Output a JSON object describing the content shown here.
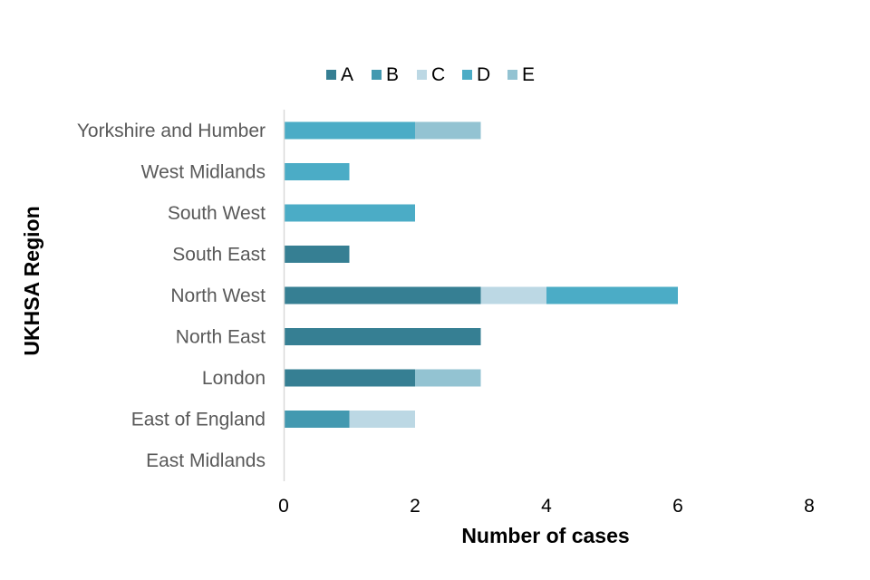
{
  "chart_data": {
    "type": "bar",
    "orientation": "horizontal",
    "stacked": true,
    "categories": [
      "East Midlands",
      "East of England",
      "London",
      "North East",
      "North West",
      "South East",
      "South West",
      "West Midlands",
      "Yorkshire and Humber"
    ],
    "series": [
      {
        "name": "A",
        "color": "#367f93",
        "values": [
          0,
          0,
          2,
          3,
          3,
          1,
          0,
          0,
          0
        ]
      },
      {
        "name": "B",
        "color": "#4399b0",
        "values": [
          0,
          1,
          0,
          0,
          0,
          0,
          0,
          0,
          0
        ]
      },
      {
        "name": "C",
        "color": "#bcd8e4",
        "values": [
          0,
          1,
          0,
          0,
          1,
          0,
          0,
          0,
          0
        ]
      },
      {
        "name": "D",
        "color": "#4bacc6",
        "values": [
          0,
          0,
          0,
          0,
          2,
          0,
          2,
          1,
          2
        ]
      },
      {
        "name": "E",
        "color": "#93c3d2",
        "values": [
          0,
          0,
          1,
          0,
          0,
          0,
          0,
          0,
          1
        ]
      }
    ],
    "xlabel": "Number of cases",
    "ylabel": "UKHSA Region",
    "xlim": [
      0,
      8
    ],
    "xticks": [
      "0",
      "2",
      "4",
      "6",
      "8"
    ],
    "grid": false,
    "legend_position": "top"
  }
}
